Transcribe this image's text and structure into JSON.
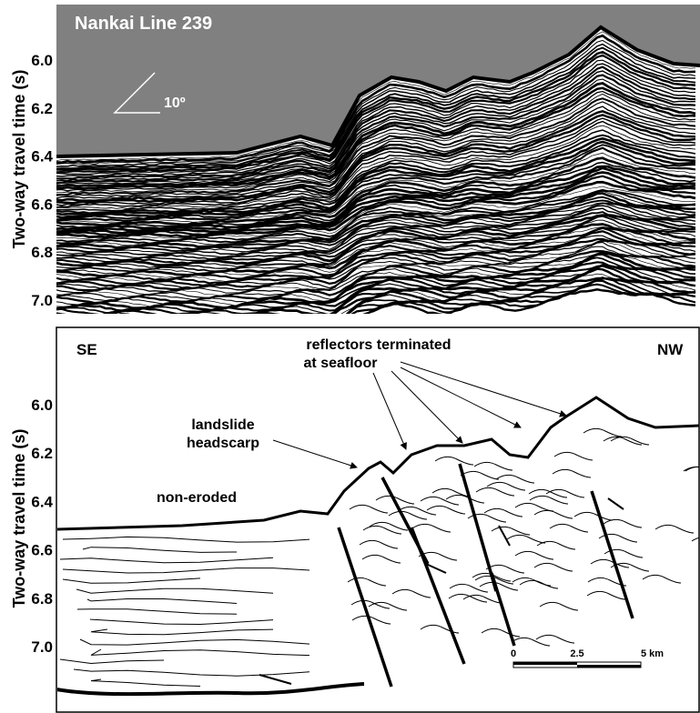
{
  "top_panel": {
    "title": "Nankai  Line  239",
    "y_axis_label": "Two-way  travel  time  (s)",
    "angle_label": "10º",
    "yticks": [
      {
        "value": 6.0,
        "label": "6.0"
      },
      {
        "value": 6.2,
        "label": "6.2"
      },
      {
        "value": 6.4,
        "label": "6.4"
      },
      {
        "value": 6.6,
        "label": "6.6"
      },
      {
        "value": 6.8,
        "label": "6.8"
      },
      {
        "value": 7.0,
        "label": "7.0"
      }
    ]
  },
  "bottom_panel": {
    "y_axis_label": "Two-way  travel  time  (s)",
    "left_label": "SE",
    "right_label": "NW",
    "annotations": {
      "reflectors": [
        "reflectors  terminated",
        "at seafloor"
      ],
      "headscarp": [
        "landslide",
        "headscarp"
      ],
      "non_eroded": "non-eroded"
    },
    "scale_bar": [
      "0",
      "2.5",
      "5  km"
    ],
    "yticks": [
      {
        "value": 6.0,
        "label": "6.0"
      },
      {
        "value": 6.2,
        "label": "6.2"
      },
      {
        "value": 6.4,
        "label": "6.4"
      },
      {
        "value": 6.6,
        "label": "6.6"
      },
      {
        "value": 6.8,
        "label": "6.8"
      },
      {
        "value": 7.0,
        "label": "7.0"
      }
    ]
  }
}
